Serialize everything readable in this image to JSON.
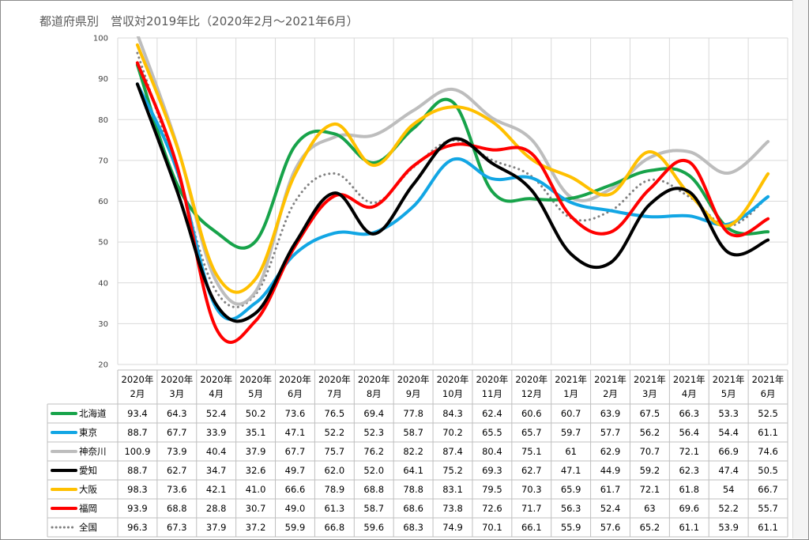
{
  "chart_data": {
    "type": "line",
    "title": "都道府県別　営収対2019年比（2020年2月～2021年6月）",
    "ylim": [
      20,
      100
    ],
    "yticks": [
      20,
      30,
      40,
      50,
      60,
      70,
      80,
      90,
      100
    ],
    "grid": true,
    "legend": "table-bottom",
    "categories": [
      [
        "2020年",
        "2月"
      ],
      [
        "2020年",
        "3月"
      ],
      [
        "2020年",
        "4月"
      ],
      [
        "2020年",
        "5月"
      ],
      [
        "2020年",
        "6月"
      ],
      [
        "2020年",
        "7月"
      ],
      [
        "2020年",
        "8月"
      ],
      [
        "2020年",
        "9月"
      ],
      [
        "2020年",
        "10月"
      ],
      [
        "2020年",
        "11月"
      ],
      [
        "2020年",
        "12月"
      ],
      [
        "2021年",
        "1月"
      ],
      [
        "2021年",
        "2月"
      ],
      [
        "2021年",
        "3月"
      ],
      [
        "2021年",
        "4月"
      ],
      [
        "2021年",
        "5月"
      ],
      [
        "2021年",
        "6月"
      ]
    ],
    "series": [
      {
        "name": "北海道",
        "color": "#17a34a",
        "dash": false,
        "width": 4,
        "values": [
          "93.4",
          "64.3",
          "52.4",
          "50.2",
          "73.6",
          "76.5",
          "69.4",
          "77.8",
          "84.3",
          "62.4",
          "60.6",
          "60.7",
          "63.9",
          "67.5",
          "66.3",
          "53.3",
          "52.5"
        ]
      },
      {
        "name": "東京",
        "color": "#12a6e4",
        "dash": false,
        "width": 4,
        "values": [
          "88.7",
          "67.7",
          "33.9",
          "35.1",
          "47.1",
          "52.2",
          "52.3",
          "58.7",
          "70.2",
          "65.5",
          "65.7",
          "59.7",
          "57.7",
          "56.2",
          "56.4",
          "54.4",
          "61.1"
        ]
      },
      {
        "name": "神奈川",
        "color": "#bdbdbd",
        "dash": false,
        "width": 4,
        "values": [
          "100.9",
          "73.9",
          "40.4",
          "37.9",
          "67.7",
          "75.7",
          "76.2",
          "82.2",
          "87.4",
          "80.4",
          "75.1",
          "61",
          "62.9",
          "70.7",
          "72.1",
          "66.9",
          "74.6"
        ]
      },
      {
        "name": "愛知",
        "color": "#000000",
        "dash": false,
        "width": 4,
        "values": [
          "88.7",
          "62.7",
          "34.7",
          "32.6",
          "49.7",
          "62.0",
          "52.0",
          "64.1",
          "75.2",
          "69.3",
          "62.7",
          "47.1",
          "44.9",
          "59.2",
          "62.3",
          "47.4",
          "50.5"
        ]
      },
      {
        "name": "大阪",
        "color": "#ffc000",
        "dash": false,
        "width": 4,
        "values": [
          "98.3",
          "73.6",
          "42.1",
          "41.0",
          "66.6",
          "78.9",
          "68.8",
          "78.8",
          "83.1",
          "79.5",
          "70.3",
          "65.9",
          "61.7",
          "72.1",
          "61.8",
          "54",
          "66.7"
        ]
      },
      {
        "name": "福岡",
        "color": "#ff0000",
        "dash": false,
        "width": 4,
        "values": [
          "93.9",
          "68.8",
          "28.8",
          "30.7",
          "49.0",
          "61.3",
          "58.7",
          "68.6",
          "73.8",
          "72.6",
          "71.7",
          "56.3",
          "52.4",
          "63",
          "69.6",
          "52.2",
          "55.7"
        ]
      },
      {
        "name": "全国",
        "color": "#808080",
        "dash": true,
        "width": 3,
        "values": [
          "96.3",
          "67.3",
          "37.9",
          "37.2",
          "59.9",
          "66.8",
          "59.6",
          "68.3",
          "74.9",
          "70.1",
          "66.1",
          "55.9",
          "57.6",
          "65.2",
          "61.1",
          "53.9",
          "61.1"
        ]
      }
    ]
  }
}
